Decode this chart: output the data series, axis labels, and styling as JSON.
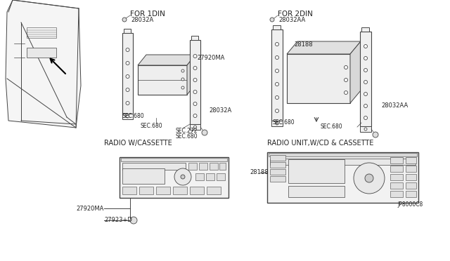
{
  "bg_color": "#ffffff",
  "line_color": "#444444",
  "text_color": "#222222",
  "labels": {
    "for_1din": "FOR 1DIN",
    "for_2din": "FOR 2DIN",
    "radio_cassette": "RADIO W/CASSETTE",
    "radio_cd_cassette": "RADIO UNIT,W/CD & CASSETTE",
    "p28032A_top": "28032A",
    "p27920MA_top": "27920MA",
    "p28032A_right": "28032A",
    "sec680_L1": "SEC.680",
    "sec680_L2": "SEC.680",
    "sec272": "SEC.272",
    "sec680_L3": "SEC.680",
    "p28032AA_top": "28032AA",
    "p28188_top": "28188",
    "p28032AA_right": "28032AA",
    "sec680_R1": "SEC.680",
    "sec680_R2": "SEC.680",
    "p27920MA_bot": "27920MA",
    "p27923D": "27923+D",
    "p28188_bot": "28188",
    "diagram_code": "JP8000C8"
  }
}
